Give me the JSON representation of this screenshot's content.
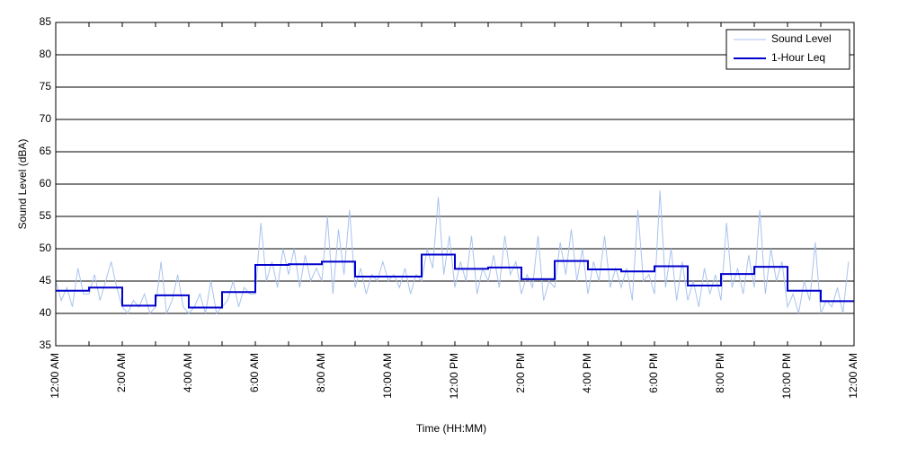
{
  "chart_data": {
    "type": "line",
    "xlabel": "Time (HH:MM)",
    "ylabel": "Sound Level (dBA)",
    "xlim": [
      0,
      1440
    ],
    "xticks": [
      {
        "value": 0,
        "label": "12:00 AM"
      },
      {
        "value": 120,
        "label": "2:00 AM"
      },
      {
        "value": 240,
        "label": "4:00 AM"
      },
      {
        "value": 360,
        "label": "6:00 AM"
      },
      {
        "value": 480,
        "label": "8:00 AM"
      },
      {
        "value": 600,
        "label": "10:00 AM"
      },
      {
        "value": 720,
        "label": "12:00 PM"
      },
      {
        "value": 840,
        "label": "2:00 PM"
      },
      {
        "value": 960,
        "label": "4:00 PM"
      },
      {
        "value": 1080,
        "label": "6:00 PM"
      },
      {
        "value": 1200,
        "label": "8:00 PM"
      },
      {
        "value": 1320,
        "label": "10:00 PM"
      },
      {
        "value": 1440,
        "label": "12:00 AM"
      }
    ],
    "xminorticks": [
      60,
      180,
      300,
      420,
      540,
      660,
      780,
      900,
      1020,
      1140,
      1260,
      1380
    ],
    "ylim": [
      35,
      85
    ],
    "yticks": [
      35,
      40,
      45,
      50,
      55,
      60,
      65,
      70,
      75,
      80,
      85
    ],
    "grid": true,
    "legend": "upper right",
    "series": [
      {
        "name": "Sound Level",
        "color": "#a9c3ee",
        "width": 1,
        "x": [
          0,
          10,
          20,
          30,
          40,
          50,
          60,
          70,
          80,
          90,
          100,
          110,
          120,
          130,
          140,
          150,
          160,
          170,
          180,
          190,
          200,
          210,
          220,
          230,
          240,
          250,
          260,
          270,
          280,
          290,
          300,
          310,
          320,
          330,
          340,
          350,
          360,
          370,
          380,
          390,
          400,
          410,
          420,
          430,
          440,
          450,
          460,
          470,
          480,
          490,
          500,
          510,
          520,
          530,
          540,
          550,
          560,
          570,
          580,
          590,
          600,
          610,
          620,
          630,
          640,
          650,
          660,
          670,
          680,
          690,
          700,
          710,
          720,
          730,
          740,
          750,
          760,
          770,
          780,
          790,
          800,
          810,
          820,
          830,
          840,
          850,
          860,
          870,
          880,
          890,
          900,
          910,
          920,
          930,
          940,
          950,
          960,
          970,
          980,
          990,
          1000,
          1010,
          1020,
          1030,
          1040,
          1050,
          1060,
          1070,
          1080,
          1090,
          1100,
          1110,
          1120,
          1130,
          1140,
          1150,
          1160,
          1170,
          1180,
          1190,
          1200,
          1210,
          1220,
          1230,
          1240,
          1250,
          1260,
          1270,
          1280,
          1290,
          1300,
          1310,
          1320,
          1330,
          1340,
          1350,
          1360,
          1370,
          1380,
          1390,
          1400,
          1410,
          1420,
          1430
        ],
        "values": [
          45,
          42,
          44,
          41,
          47,
          43,
          43,
          46,
          42,
          45,
          48,
          44,
          41,
          40,
          42,
          41,
          43,
          40,
          41,
          48,
          40,
          42,
          46,
          41,
          40,
          41,
          43,
          40,
          45,
          40,
          41,
          42,
          45,
          41,
          44,
          43,
          43,
          54,
          45,
          48,
          44,
          50,
          46,
          50,
          44,
          49,
          45,
          47,
          45,
          55,
          43,
          53,
          46,
          56,
          44,
          47,
          43,
          46,
          45,
          48,
          45,
          46,
          44,
          47,
          43,
          46,
          45,
          50,
          47,
          58,
          46,
          52,
          44,
          48,
          45,
          52,
          43,
          47,
          45,
          49,
          44,
          52,
          46,
          48,
          43,
          46,
          44,
          52,
          42,
          45,
          44,
          51,
          46,
          53,
          45,
          50,
          43,
          48,
          45,
          52,
          44,
          47,
          44,
          47,
          42,
          56,
          45,
          46,
          43,
          59,
          44,
          50,
          42,
          48,
          42,
          45,
          41,
          47,
          43,
          46,
          42,
          54,
          44,
          47,
          43,
          49,
          44,
          56,
          43,
          50,
          45,
          48,
          41,
          43,
          40,
          45,
          42,
          51,
          40,
          42,
          41,
          44,
          40,
          48
        ]
      },
      {
        "name": "1-Hour Leq",
        "color": "#0000cc",
        "width": 2,
        "step": "post",
        "x": [
          0,
          60,
          120,
          180,
          240,
          300,
          360,
          420,
          480,
          540,
          600,
          660,
          720,
          780,
          840,
          900,
          960,
          1020,
          1080,
          1140,
          1200,
          1260,
          1320,
          1380
        ],
        "values": [
          43.5,
          44,
          41.2,
          42.8,
          40.9,
          43.3,
          47.5,
          47.6,
          48,
          45.7,
          45.7,
          49.1,
          46.9,
          47.1,
          45.3,
          48.1,
          46.8,
          46.5,
          47.3,
          44.3,
          46.1,
          47.2,
          43.5,
          41.9
        ]
      }
    ]
  }
}
